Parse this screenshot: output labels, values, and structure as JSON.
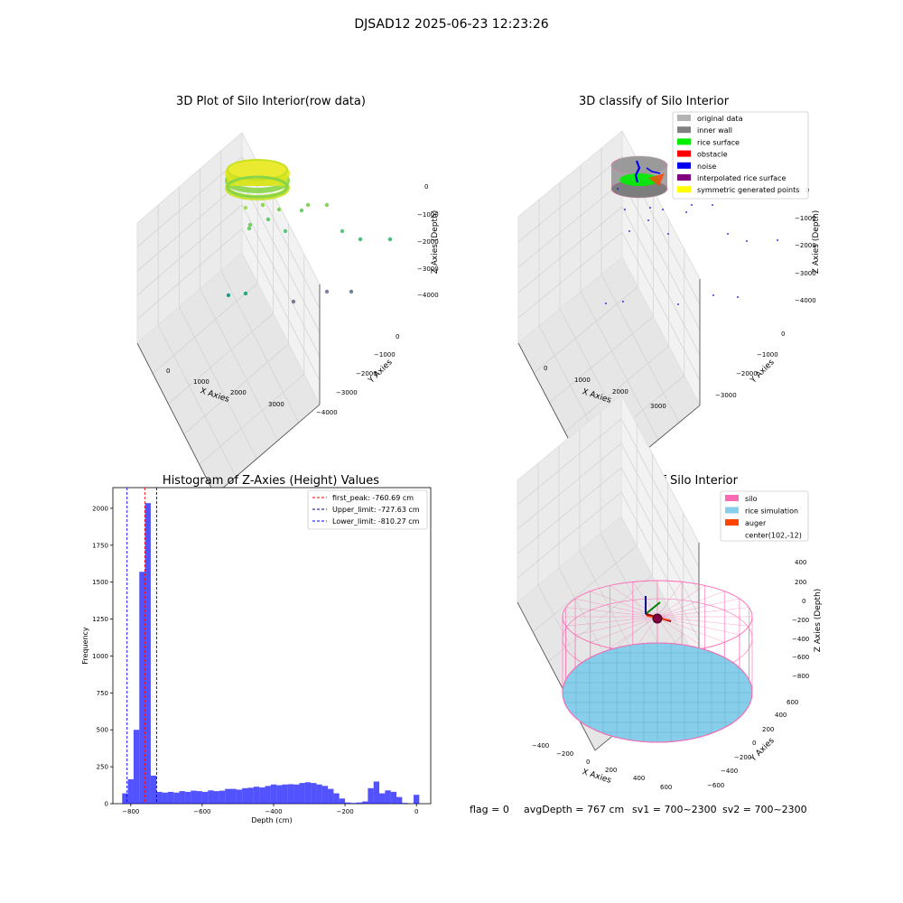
{
  "figure": {
    "suptitle": "DJSAD12 2025-06-23 12:23:26",
    "status_line": {
      "flag": "flag = 0",
      "avg_depth": "avgDepth = 767 cm",
      "sv1": "sv1 = 700~2300",
      "sv2": "sv2 = 700~2300"
    }
  },
  "chart_data": [
    {
      "type": "scatter",
      "projection": "3d",
      "title": "3D Plot of Silo Interior(row data)",
      "xlabel": "X Axies",
      "ylabel": "Y Axies",
      "zlabel": "Z Axies (Depth)",
      "x_ticks": [
        "0",
        "1000",
        "2000",
        "3000"
      ],
      "y_ticks": [
        "0",
        "−1000",
        "−2000",
        "−3000",
        "−4000"
      ],
      "z_ticks": [
        "0",
        "−1000",
        "−2000",
        "−3000",
        "−4000"
      ],
      "grid": true,
      "colormap": "viridis_r (colored by depth)",
      "clusters": [
        {
          "name": "",
          "shape": "ring",
          "center": [
            102,
            -12
          ],
          "radius": 600,
          "z": -760,
          "colors": [
            "#c8e020",
            "#8ad547",
            "#e0e81a"
          ]
        }
      ],
      "points": [
        {
          "x": 500,
          "y": -300,
          "z": -1200
        },
        {
          "x": 700,
          "y": -500,
          "z": -1400
        },
        {
          "x": 1300,
          "y": -800,
          "z": -1300
        },
        {
          "x": 1800,
          "y": -600,
          "z": -1000
        },
        {
          "x": 300,
          "y": -900,
          "z": -1800
        },
        {
          "x": 1900,
          "y": -1200,
          "z": -1900
        },
        {
          "x": 2600,
          "y": -1500,
          "z": -2100
        },
        {
          "x": 3300,
          "y": -1200,
          "z": -2300
        },
        {
          "x": 800,
          "y": -1400,
          "z": -1900
        },
        {
          "x": 3000,
          "y": -700,
          "z": -2200
        },
        {
          "x": -200,
          "y": -1700,
          "z": -3800
        },
        {
          "x": 500,
          "y": -1800,
          "z": -3800
        },
        {
          "x": 1400,
          "y": -2300,
          "z": -3800
        },
        {
          "x": 2200,
          "y": -2000,
          "z": -3700
        },
        {
          "x": 2700,
          "y": -2400,
          "z": -3900
        }
      ]
    },
    {
      "type": "scatter",
      "projection": "3d",
      "title": "3D classify of Silo Interior",
      "xlabel": "X Axies",
      "ylabel": "Y Axies",
      "zlabel": "Z Axies (Depth)",
      "x_ticks": [
        "0",
        "1000",
        "2000",
        "3000"
      ],
      "y_ticks": [
        "0",
        "−1000",
        "−2000",
        "−3000"
      ],
      "z_ticks": [
        "0",
        "−1000",
        "−2000",
        "−3000",
        "−4000"
      ],
      "grid": true,
      "legend": {
        "placement": "upper-right",
        "entries": [
          {
            "label": "original data",
            "color": "#b3b3b3"
          },
          {
            "label": "inner wall",
            "color": "#808080"
          },
          {
            "label": "rice surface",
            "color": "#00ee00"
          },
          {
            "label": "obstacle",
            "color": "#ff0000"
          },
          {
            "label": "noise",
            "color": "#0000ee"
          },
          {
            "label": "interpolated rice surface",
            "color": "#800080"
          },
          {
            "label": "symmetric generated points",
            "color": "#ffff00"
          }
        ]
      },
      "noise_points": [
        {
          "x": 700,
          "y": -300,
          "z": -1000
        },
        {
          "x": 1500,
          "y": -600,
          "z": -900
        },
        {
          "x": 2200,
          "y": -400,
          "z": -800
        },
        {
          "x": 2900,
          "y": -800,
          "z": -1000
        },
        {
          "x": 400,
          "y": -1000,
          "z": -1600
        },
        {
          "x": 1800,
          "y": -1000,
          "z": -1700
        },
        {
          "x": 3000,
          "y": -1200,
          "z": -1900
        },
        {
          "x": 3400,
          "y": -1500,
          "z": -2100
        },
        {
          "x": 900,
          "y": -500,
          "z": -1300
        },
        {
          "x": -300,
          "y": -1700,
          "z": -3900
        },
        {
          "x": 400,
          "y": -1800,
          "z": -3800
        },
        {
          "x": 1600,
          "y": -2200,
          "z": -3800
        },
        {
          "x": 2600,
          "y": -2000,
          "z": -3700
        },
        {
          "x": 3000,
          "y": -2500,
          "z": -3900
        }
      ]
    },
    {
      "type": "bar",
      "title": "Histogram of Z-Axies (Height) Values",
      "xlabel": "Depth (cm)",
      "ylabel": "Frequency",
      "xlim": [
        -850,
        40
      ],
      "ylim": [
        0,
        2140
      ],
      "x_ticks": [
        -800,
        -600,
        -400,
        -200,
        0
      ],
      "x_tick_labels": [
        "−800",
        "−600",
        "−400",
        "−200",
        "0"
      ],
      "y_ticks": [
        0,
        250,
        500,
        750,
        1000,
        1250,
        1500,
        1750,
        2000
      ],
      "bar_color": "#0000ff",
      "bin_width": 16,
      "bins": [
        {
          "x": -824,
          "v": 70
        },
        {
          "x": -808,
          "v": 165
        },
        {
          "x": -792,
          "v": 500
        },
        {
          "x": -776,
          "v": 1570
        },
        {
          "x": -760,
          "v": 2035
        },
        {
          "x": -744,
          "v": 190
        },
        {
          "x": -728,
          "v": 80
        },
        {
          "x": -712,
          "v": 75
        },
        {
          "x": -696,
          "v": 80
        },
        {
          "x": -680,
          "v": 75
        },
        {
          "x": -664,
          "v": 85
        },
        {
          "x": -648,
          "v": 80
        },
        {
          "x": -632,
          "v": 88
        },
        {
          "x": -616,
          "v": 85
        },
        {
          "x": -600,
          "v": 80
        },
        {
          "x": -584,
          "v": 90
        },
        {
          "x": -568,
          "v": 85
        },
        {
          "x": -552,
          "v": 88
        },
        {
          "x": -536,
          "v": 100
        },
        {
          "x": -520,
          "v": 100
        },
        {
          "x": -504,
          "v": 95
        },
        {
          "x": -488,
          "v": 105
        },
        {
          "x": -472,
          "v": 108
        },
        {
          "x": -456,
          "v": 115
        },
        {
          "x": -440,
          "v": 110
        },
        {
          "x": -424,
          "v": 120
        },
        {
          "x": -408,
          "v": 130
        },
        {
          "x": -392,
          "v": 125
        },
        {
          "x": -376,
          "v": 130
        },
        {
          "x": -360,
          "v": 132
        },
        {
          "x": -344,
          "v": 130
        },
        {
          "x": -328,
          "v": 140
        },
        {
          "x": -312,
          "v": 145
        },
        {
          "x": -296,
          "v": 140
        },
        {
          "x": -280,
          "v": 130
        },
        {
          "x": -264,
          "v": 120
        },
        {
          "x": -248,
          "v": 100
        },
        {
          "x": -232,
          "v": 70
        },
        {
          "x": -216,
          "v": 35
        },
        {
          "x": -200,
          "v": 8
        },
        {
          "x": -184,
          "v": 5
        },
        {
          "x": -168,
          "v": 8
        },
        {
          "x": -152,
          "v": 15
        },
        {
          "x": -136,
          "v": 105
        },
        {
          "x": -120,
          "v": 150
        },
        {
          "x": -104,
          "v": 70
        },
        {
          "x": -88,
          "v": 90
        },
        {
          "x": -72,
          "v": 80
        },
        {
          "x": -56,
          "v": 45
        },
        {
          "x": -40,
          "v": 5
        },
        {
          "x": -24,
          "v": 0
        },
        {
          "x": -8,
          "v": 60
        }
      ],
      "vlines": [
        {
          "x": -760.69,
          "color": "#ff0000",
          "label": "first_peak: -760.69 cm"
        },
        {
          "x": -727.63,
          "color": "#00008b",
          "label": "Upper_limit: -727.63 cm"
        },
        {
          "x": -810.27,
          "color": "#0000ff",
          "label": "Lower_limit: -810.27 cm"
        }
      ],
      "legend": {
        "placement": "upper-right"
      }
    },
    {
      "type": "surface",
      "projection": "3d",
      "title": "3D simulation of Silo Interior",
      "xlabel": "X Axies",
      "ylabel": "Y Axies",
      "zlabel": "Z Axies (Depth)",
      "x_ticks": [
        "−400",
        "−200",
        "0",
        "200",
        "400",
        "600"
      ],
      "y_ticks": [
        "600",
        "400",
        "200",
        "0",
        "−200",
        "−400",
        "−600"
      ],
      "z_ticks": [
        "400",
        "200",
        "0",
        "−200",
        "−400",
        "−600",
        "−800"
      ],
      "grid": true,
      "silo": {
        "center": [
          102,
          -12
        ],
        "radius": 560,
        "z_top": 0,
        "z_bottom": -767
      },
      "legend": {
        "placement": "upper-right",
        "entries": [
          {
            "label": "silo",
            "color": "#ff69b4"
          },
          {
            "label": "rice simulation",
            "color": "#87ceeb"
          },
          {
            "label": "auger",
            "color": "#ff4500"
          },
          {
            "label": "center(102,-12)",
            "color": ""
          }
        ]
      }
    }
  ]
}
